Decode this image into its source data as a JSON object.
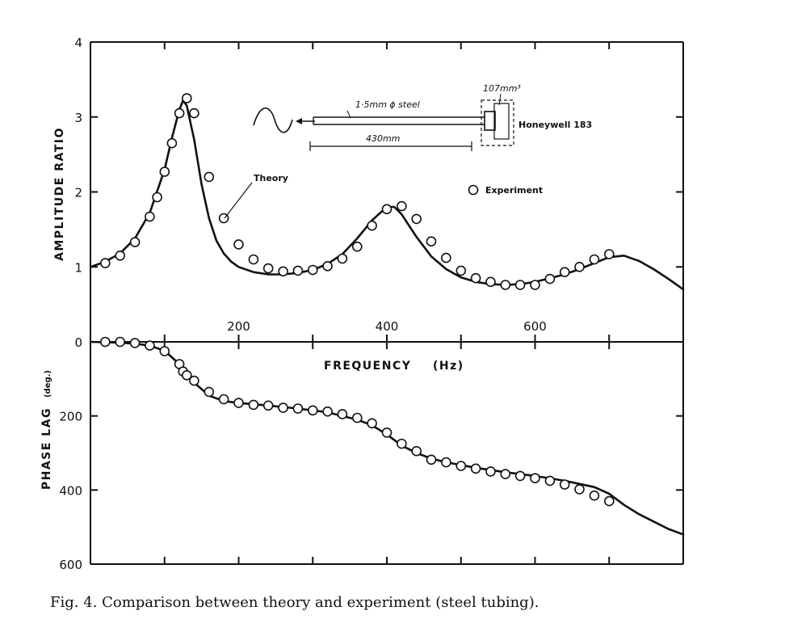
{
  "chart_data": [
    {
      "type": "line",
      "panel": "amplitude",
      "ylabel": "AMPLITUDE RATIO",
      "xlabel": "FREQUENCY",
      "xunit": "(Hz)",
      "xlim": [
        0,
        800
      ],
      "ylim": [
        0,
        4
      ],
      "x_tick_labels": [
        "200",
        "400",
        "600"
      ],
      "x_tick_values": [
        200,
        400,
        600
      ],
      "y_tick_labels": [
        "0",
        "1",
        "2",
        "3",
        "4"
      ],
      "y_tick_values": [
        0,
        1,
        2,
        3,
        4
      ],
      "series": [
        {
          "name": "Theory",
          "x": [
            0,
            20,
            40,
            60,
            80,
            100,
            110,
            120,
            125,
            130,
            140,
            150,
            160,
            170,
            180,
            190,
            200,
            220,
            240,
            260,
            280,
            300,
            320,
            340,
            360,
            380,
            400,
            410,
            420,
            430,
            440,
            460,
            480,
            500,
            520,
            540,
            560,
            580,
            600,
            620,
            640,
            660,
            680,
            700,
            720,
            740,
            760,
            780,
            800
          ],
          "y": [
            1.0,
            1.07,
            1.18,
            1.38,
            1.72,
            2.3,
            2.72,
            3.1,
            3.22,
            3.15,
            2.7,
            2.1,
            1.65,
            1.35,
            1.18,
            1.07,
            1.0,
            0.93,
            0.9,
            0.9,
            0.92,
            0.96,
            1.04,
            1.17,
            1.38,
            1.62,
            1.8,
            1.8,
            1.7,
            1.55,
            1.4,
            1.14,
            0.97,
            0.86,
            0.8,
            0.77,
            0.76,
            0.77,
            0.8,
            0.85,
            0.9,
            0.97,
            1.05,
            1.13,
            1.15,
            1.08,
            0.97,
            0.84,
            0.7
          ]
        },
        {
          "name": "Experiment",
          "x": [
            20,
            40,
            60,
            80,
            90,
            100,
            110,
            120,
            130,
            140,
            160,
            180,
            200,
            220,
            240,
            260,
            280,
            300,
            320,
            340,
            360,
            380,
            400,
            420,
            440,
            460,
            480,
            500,
            520,
            540,
            560,
            580,
            600,
            620,
            640,
            660,
            680,
            700
          ],
          "y": [
            1.05,
            1.15,
            1.33,
            1.67,
            1.93,
            2.27,
            2.65,
            3.05,
            3.25,
            3.05,
            2.2,
            1.65,
            1.3,
            1.1,
            0.98,
            0.94,
            0.95,
            0.96,
            1.01,
            1.11,
            1.27,
            1.55,
            1.77,
            1.81,
            1.64,
            1.34,
            1.12,
            0.95,
            0.85,
            0.8,
            0.76,
            0.76,
            0.76,
            0.84,
            0.93,
            1.0,
            1.1,
            1.17
          ]
        }
      ]
    },
    {
      "type": "line",
      "panel": "phase",
      "ylabel": "PHASE LAG",
      "yunit": "(deg.)",
      "xlim": [
        0,
        800
      ],
      "ylim": [
        0,
        600
      ],
      "y_tick_labels": [
        "200",
        "400",
        "600"
      ],
      "y_tick_values": [
        200,
        400,
        600
      ],
      "series": [
        {
          "name": "Theory",
          "x": [
            0,
            40,
            60,
            80,
            100,
            120,
            140,
            160,
            180,
            200,
            240,
            280,
            320,
            340,
            360,
            380,
            400,
            420,
            440,
            460,
            480,
            520,
            560,
            600,
            640,
            680,
            700,
            720,
            740,
            760,
            780,
            800
          ],
          "y": [
            0,
            2,
            5,
            10,
            24,
            60,
            110,
            145,
            160,
            165,
            172,
            180,
            190,
            200,
            210,
            225,
            250,
            280,
            300,
            315,
            325,
            340,
            352,
            362,
            375,
            392,
            410,
            440,
            465,
            485,
            505,
            520
          ]
        },
        {
          "name": "Experiment",
          "x": [
            20,
            40,
            60,
            80,
            100,
            120,
            125,
            130,
            140,
            160,
            180,
            200,
            220,
            240,
            260,
            280,
            300,
            320,
            340,
            360,
            380,
            400,
            420,
            440,
            460,
            480,
            500,
            520,
            540,
            560,
            580,
            600,
            620,
            640,
            660,
            680,
            700
          ],
          "y": [
            0,
            0,
            3,
            10,
            25,
            60,
            80,
            90,
            105,
            135,
            155,
            165,
            170,
            172,
            178,
            180,
            185,
            188,
            195,
            205,
            220,
            245,
            275,
            295,
            318,
            325,
            335,
            342,
            350,
            357,
            362,
            368,
            375,
            385,
            398,
            415,
            430
          ]
        }
      ]
    }
  ],
  "annotations": {
    "theory_label": "Theory",
    "experiment_legend": "Experiment",
    "tube_spec": "1·5mm ϕ steel",
    "tube_length": "430mm",
    "volume": "107mm³",
    "transducer": "Honeywell 183"
  },
  "caption": "Fig. 4. Comparison between theory and experiment (steel tubing)."
}
